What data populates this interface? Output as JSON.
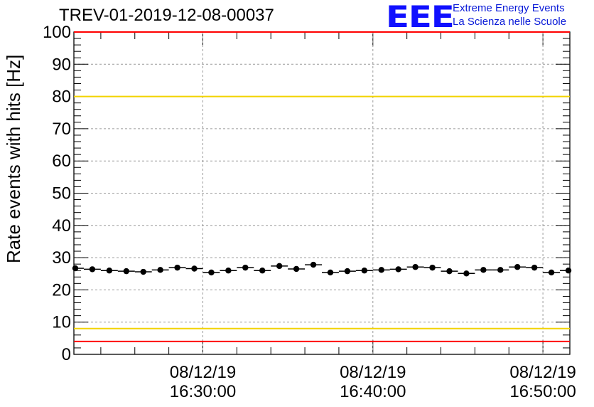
{
  "title": "TREV-01-2019-12-08-00037",
  "logo": {
    "mark": "EEE",
    "line1": "Extreme Energy Events",
    "line2": "La Scienza nelle Scuole",
    "color": "#1010ff"
  },
  "chart_data": {
    "type": "scatter",
    "title": "TREV-01-2019-12-08-00037",
    "xlabel": "",
    "ylabel": "Rate events with hits [Hz]",
    "ylim": [
      0,
      100
    ],
    "y_ticks": [
      0,
      10,
      20,
      30,
      40,
      50,
      60,
      70,
      80,
      90,
      100
    ],
    "x_ticks": [
      {
        "date": "08/12/19",
        "time": "16:30:00"
      },
      {
        "date": "08/12/19",
        "time": "16:40:00"
      },
      {
        "date": "08/12/19",
        "time": "16:50:00"
      }
    ],
    "xlim": [
      "16:22:25",
      "16:51:35"
    ],
    "grid": true,
    "series": [
      {
        "marker": "filled-circle",
        "color": "#000000",
        "bin_minutes": 1,
        "x": [
          "16:22:30",
          "16:23:30",
          "16:24:30",
          "16:25:30",
          "16:26:30",
          "16:27:30",
          "16:28:30",
          "16:29:30",
          "16:30:30",
          "16:31:30",
          "16:32:30",
          "16:33:30",
          "16:34:30",
          "16:35:30",
          "16:36:30",
          "16:37:30",
          "16:38:30",
          "16:39:30",
          "16:40:30",
          "16:41:30",
          "16:42:30",
          "16:43:30",
          "16:44:30",
          "16:45:30",
          "16:46:30",
          "16:47:30",
          "16:48:30",
          "16:49:30",
          "16:50:30",
          "16:51:30"
        ],
        "values": [
          26.7,
          26.4,
          26.0,
          25.8,
          25.6,
          26.2,
          26.9,
          26.6,
          25.4,
          26.0,
          26.9,
          26.0,
          27.4,
          26.5,
          27.8,
          25.4,
          25.8,
          26.0,
          26.2,
          26.4,
          27.1,
          26.9,
          25.8,
          25.1,
          26.2,
          26.2,
          27.1,
          26.9,
          25.4,
          26.0
        ]
      }
    ],
    "reference_lines": [
      {
        "y": 100,
        "color": "#ff0000"
      },
      {
        "y": 80,
        "color": "#f2d300"
      },
      {
        "y": 8,
        "color": "#f2d300"
      },
      {
        "y": 4,
        "color": "#ff0000"
      }
    ]
  }
}
